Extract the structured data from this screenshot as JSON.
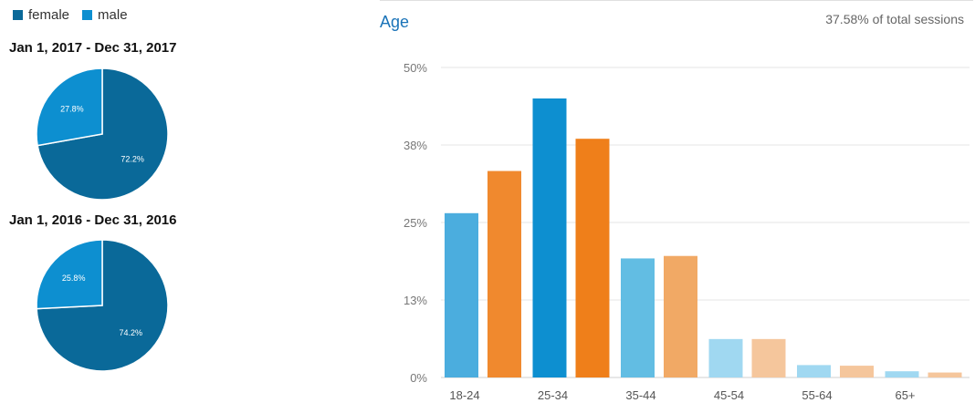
{
  "legend": [
    {
      "label": "female",
      "color": "#0a6999"
    },
    {
      "label": "male",
      "color": "#0d8fd0"
    }
  ],
  "chart_data": [
    {
      "type": "pie",
      "title": "Jan 1, 2017 - Dec 31, 2017",
      "slices": [
        {
          "label": "female",
          "value": 72.2,
          "display": "72.2%",
          "color": "#0a6999"
        },
        {
          "label": "male",
          "value": 27.8,
          "display": "27.8%",
          "color": "#0d8fd0"
        }
      ]
    },
    {
      "type": "pie",
      "title": "Jan 1, 2016 - Dec 31, 2016",
      "slices": [
        {
          "label": "female",
          "value": 74.2,
          "display": "74.2%",
          "color": "#0a6999"
        },
        {
          "label": "male",
          "value": 25.8,
          "display": "25.8%",
          "color": "#0d8fd0"
        }
      ]
    },
    {
      "type": "bar",
      "title": "Age",
      "subtitle": "37.58% of total sessions",
      "ylim": [
        0,
        50
      ],
      "yticks": [
        {
          "value": 0,
          "label": "0%"
        },
        {
          "value": 12.5,
          "label": "13%"
        },
        {
          "value": 25,
          "label": "25%"
        },
        {
          "value": 37.5,
          "label": "38%"
        },
        {
          "value": 50,
          "label": "50%"
        }
      ],
      "grid": true,
      "groups": [
        {
          "category": "18-24",
          "bars": [
            {
              "value": 26.5,
              "color": "#4badde"
            },
            {
              "value": 33.3,
              "color": "#f0892e"
            }
          ]
        },
        {
          "category": "25-34",
          "bars": [
            {
              "value": 45.0,
              "color": "#0d8fd0"
            },
            {
              "value": 38.5,
              "color": "#ef7f1a"
            }
          ]
        },
        {
          "category": "35-44",
          "bars": [
            {
              "value": 19.2,
              "color": "#62bde3"
            },
            {
              "value": 19.6,
              "color": "#f1a965"
            }
          ]
        },
        {
          "category": "45-54",
          "bars": [
            {
              "value": 6.2,
              "color": "#a0d8f1"
            },
            {
              "value": 6.2,
              "color": "#f5c69c"
            }
          ]
        },
        {
          "category": "55-64",
          "bars": [
            {
              "value": 2.0,
              "color": "#a0d8f1"
            },
            {
              "value": 1.9,
              "color": "#f5c69c"
            }
          ]
        },
        {
          "category": "65+",
          "bars": [
            {
              "value": 1.0,
              "color": "#a0d8f1"
            },
            {
              "value": 0.8,
              "color": "#f5c69c"
            }
          ]
        }
      ]
    }
  ]
}
